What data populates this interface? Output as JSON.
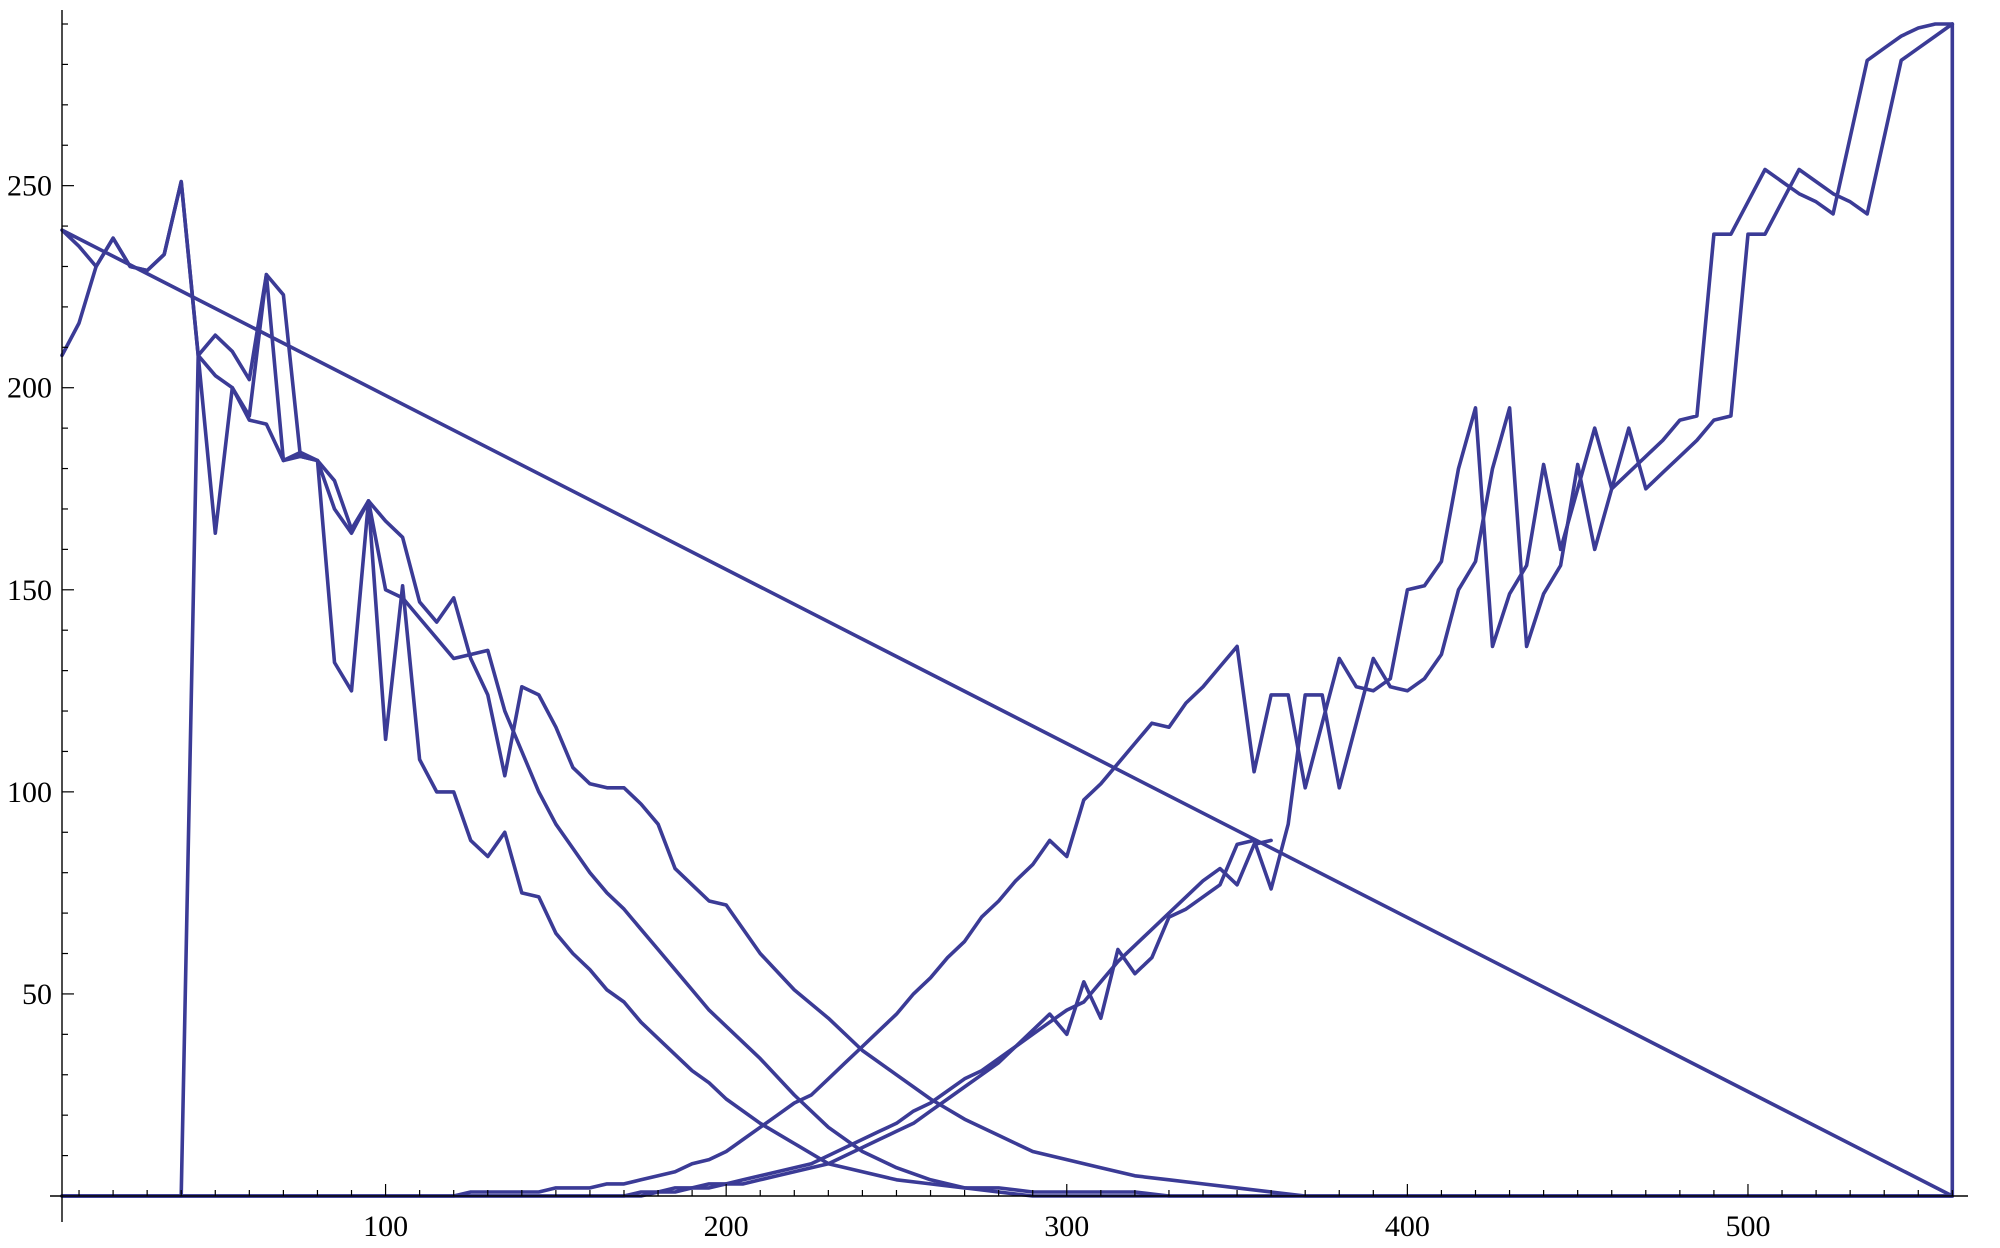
{
  "chart_data": {
    "type": "line",
    "title": "",
    "xlabel": "",
    "ylabel": "",
    "xlim": [
      0,
      565
    ],
    "ylim": [
      0,
      290
    ],
    "grid": false,
    "line_color": "#3b3b96",
    "x_ticks": [
      100,
      200,
      300,
      400,
      500
    ],
    "y_ticks": [
      50,
      100,
      150,
      200,
      250
    ],
    "x_minor_step": 10,
    "y_minor_step": 10,
    "series": [
      {
        "x": [
          5,
          10,
          15,
          20,
          25,
          30,
          35,
          40,
          45,
          50,
          55,
          60,
          65,
          70,
          75,
          80,
          85,
          90,
          95,
          100,
          105,
          110,
          115,
          120,
          125,
          130,
          135,
          140,
          145,
          150,
          155,
          160,
          165,
          170,
          175,
          180,
          185,
          190,
          195,
          200,
          210,
          220,
          230,
          240,
          250,
          260,
          270,
          280,
          290,
          300,
          310,
          320,
          330,
          340,
          350,
          360,
          370,
          380,
          390,
          400,
          410,
          420,
          430,
          440,
          450,
          460,
          470,
          480,
          490,
          500,
          510,
          520,
          530,
          540,
          550,
          560,
          560
        ],
        "y": [
          208,
          216,
          230,
          237,
          230,
          229,
          233,
          251,
          208,
          213,
          209,
          202,
          228,
          223,
          183,
          182,
          177,
          165,
          172,
          167,
          163,
          147,
          142,
          148,
          133,
          124,
          104,
          126,
          124,
          116,
          106,
          102,
          101,
          101,
          97,
          92,
          81,
          77,
          73,
          72,
          60,
          51,
          44,
          36,
          30,
          24,
          19,
          15,
          11,
          9,
          7,
          5,
          4,
          3,
          2,
          1,
          0,
          0,
          0,
          0,
          0,
          0,
          0,
          0,
          0,
          0,
          0,
          0,
          0,
          0,
          0,
          0,
          0,
          0,
          0,
          0,
          290
        ]
      },
      {
        "x": [
          5,
          10,
          15,
          20,
          25,
          30,
          35,
          40,
          45,
          50,
          55,
          60,
          65,
          70,
          75,
          80,
          85,
          90,
          95,
          100,
          105,
          110,
          115,
          120,
          125,
          130,
          135,
          140,
          145,
          150,
          155,
          160,
          165,
          170,
          175,
          180,
          185,
          190,
          195,
          200,
          210,
          220,
          230,
          240,
          250,
          260,
          270,
          280,
          290,
          300,
          310,
          320,
          330,
          340,
          350,
          360,
          370,
          380,
          390,
          400,
          410,
          420,
          430,
          440,
          450,
          460,
          470,
          480,
          490,
          500,
          510,
          520,
          530,
          540,
          550,
          560,
          5
        ],
        "y": [
          239,
          235,
          230,
          237,
          230,
          229,
          233,
          251,
          208,
          203,
          200,
          192,
          191,
          182,
          183,
          182,
          132,
          125,
          172,
          113,
          151,
          108,
          100,
          100,
          88,
          84,
          90,
          75,
          74,
          65,
          60,
          56,
          51,
          48,
          43,
          39,
          35,
          31,
          28,
          24,
          18,
          13,
          8,
          6,
          4,
          3,
          2,
          2,
          1,
          1,
          1,
          1,
          0,
          0,
          0,
          0,
          0,
          0,
          0,
          0,
          0,
          0,
          0,
          0,
          0,
          0,
          0,
          0,
          0,
          0,
          0,
          0,
          0,
          0,
          0,
          0,
          239
        ]
      },
      {
        "x": [
          5,
          10,
          15,
          20,
          25,
          30,
          35,
          40,
          45,
          50,
          55,
          60,
          65,
          70,
          75,
          80,
          85,
          90,
          95,
          100,
          105,
          110,
          115,
          120,
          125,
          130,
          135,
          140,
          145,
          150,
          155,
          160,
          165,
          170,
          175,
          180,
          185,
          190,
          195,
          200,
          210,
          220,
          230,
          240,
          250,
          260,
          270,
          280,
          290,
          300,
          310,
          320,
          330,
          340,
          350,
          360,
          370,
          380,
          390,
          400,
          410,
          420,
          430,
          440,
          450,
          460,
          470,
          480,
          490,
          500,
          510,
          520,
          530,
          540,
          550,
          560
        ],
        "y": [
          0,
          0,
          0,
          0,
          0,
          0,
          0,
          0,
          208,
          164,
          200,
          193,
          228,
          182,
          184,
          182,
          170,
          164,
          172,
          150,
          148,
          143,
          138,
          133,
          134,
          135,
          120,
          110,
          100,
          92,
          86,
          80,
          75,
          71,
          66,
          61,
          56,
          51,
          46,
          42,
          34,
          25,
          17,
          11,
          7,
          4,
          2,
          1,
          0,
          0,
          0,
          0,
          0,
          0,
          0,
          0,
          0,
          0,
          0,
          0,
          0,
          0,
          0,
          0,
          0,
          0,
          0,
          0,
          0,
          0,
          0,
          0,
          0,
          0,
          0,
          0
        ]
      },
      {
        "x": [
          5,
          10,
          15,
          20,
          25,
          30,
          35,
          40,
          45,
          50,
          55,
          60,
          65,
          70,
          75,
          80,
          85,
          90,
          95,
          100,
          105,
          110,
          115,
          120,
          125,
          130,
          135,
          140,
          145,
          150,
          155,
          160,
          165,
          170,
          175,
          180,
          185,
          190,
          195,
          200,
          205,
          210,
          215,
          220,
          225,
          230,
          235,
          240,
          245,
          250,
          255,
          260,
          265,
          270,
          275,
          280,
          285,
          290,
          295,
          300,
          305,
          310,
          315,
          320,
          325,
          330,
          335,
          340,
          345,
          350,
          355,
          360,
          365,
          370,
          375,
          380,
          385,
          390,
          395,
          400,
          405,
          410,
          415,
          420,
          425,
          430,
          435,
          440,
          445,
          450,
          455,
          460,
          465,
          470,
          475,
          480,
          485,
          490,
          495,
          500,
          505,
          510,
          515,
          520,
          525,
          530,
          535,
          540,
          545,
          550,
          555,
          560
        ],
        "y": [
          0,
          0,
          0,
          0,
          0,
          0,
          0,
          0,
          0,
          0,
          0,
          0,
          0,
          0,
          0,
          0,
          0,
          0,
          0,
          0,
          0,
          0,
          0,
          0,
          1,
          1,
          1,
          1,
          1,
          2,
          2,
          2,
          3,
          3,
          4,
          5,
          6,
          8,
          9,
          11,
          14,
          17,
          20,
          23,
          25,
          29,
          33,
          37,
          41,
          45,
          50,
          54,
          59,
          63,
          69,
          73,
          78,
          82,
          88,
          84,
          98,
          102,
          107,
          112,
          117,
          116,
          122,
          126,
          131,
          136,
          105,
          124,
          124,
          101,
          117,
          133,
          126,
          125,
          128,
          150,
          151,
          157,
          180,
          195,
          136,
          149,
          156,
          181,
          160,
          175,
          190,
          175,
          179,
          183,
          187,
          192,
          193,
          238,
          238,
          246,
          254,
          251,
          248,
          246,
          243,
          262,
          281,
          284,
          287,
          289,
          290,
          290
        ]
      },
      {
        "x": [
          5,
          10,
          15,
          20,
          25,
          30,
          35,
          40,
          45,
          50,
          55,
          60,
          65,
          70,
          75,
          80,
          85,
          90,
          95,
          100,
          105,
          110,
          115,
          120,
          125,
          130,
          135,
          140,
          145,
          150,
          155,
          160,
          165,
          170,
          175,
          180,
          185,
          190,
          195,
          200,
          205,
          210,
          215,
          220,
          225,
          230,
          235,
          240,
          245,
          250,
          255,
          260,
          265,
          270,
          275,
          280,
          285,
          290,
          295,
          300,
          305,
          310,
          315,
          320,
          325,
          330,
          335,
          340,
          345,
          350,
          355,
          360,
          365,
          370,
          375,
          380,
          385,
          390,
          395,
          400,
          405,
          410,
          415,
          420,
          425,
          430,
          435,
          440,
          445,
          450,
          455,
          460,
          465,
          470,
          475,
          480,
          485,
          490,
          495,
          500,
          505,
          510,
          515,
          520,
          525,
          530,
          535,
          540,
          545,
          550,
          555,
          560
        ],
        "y": [
          0,
          0,
          0,
          0,
          0,
          0,
          0,
          0,
          0,
          0,
          0,
          0,
          0,
          0,
          0,
          0,
          0,
          0,
          0,
          0,
          0,
          0,
          0,
          0,
          0,
          0,
          0,
          0,
          0,
          0,
          0,
          0,
          0,
          0,
          1,
          1,
          1,
          2,
          2,
          3,
          3,
          4,
          5,
          6,
          7,
          8,
          10,
          12,
          14,
          16,
          18,
          21,
          24,
          27,
          30,
          33,
          37,
          41,
          45,
          40,
          53,
          44,
          61,
          55,
          59,
          69,
          71,
          74,
          77,
          87,
          88,
          76,
          92,
          124,
          124,
          101,
          117,
          133,
          126,
          125,
          128,
          134,
          150,
          157,
          180,
          195,
          136,
          149,
          156,
          181,
          160,
          175,
          190,
          175,
          179,
          183,
          187,
          192,
          193,
          238,
          238,
          246,
          254,
          251,
          248,
          246,
          243,
          262,
          281,
          284,
          287,
          290
        ]
      },
      {
        "x": [
          5,
          10,
          15,
          20,
          25,
          30,
          35,
          40,
          45,
          50,
          55,
          60,
          65,
          70,
          75,
          80,
          85,
          90,
          95,
          100,
          105,
          110,
          115,
          120,
          125,
          130,
          135,
          140,
          145,
          150,
          155,
          160,
          165,
          170,
          175,
          180,
          185,
          190,
          195,
          200,
          205,
          210,
          215,
          220,
          225,
          230,
          235,
          240,
          245,
          250,
          255,
          260,
          265,
          270,
          275,
          280,
          285,
          290,
          295,
          300,
          305,
          310,
          315,
          320,
          325,
          330,
          335,
          340,
          345,
          350,
          355,
          360
        ],
        "y": [
          0,
          0,
          0,
          0,
          0,
          0,
          0,
          0,
          0,
          0,
          0,
          0,
          0,
          0,
          0,
          0,
          0,
          0,
          0,
          0,
          0,
          0,
          0,
          0,
          0,
          0,
          0,
          0,
          0,
          0,
          0,
          0,
          0,
          0,
          0,
          1,
          2,
          2,
          3,
          3,
          4,
          5,
          6,
          7,
          8,
          10,
          12,
          14,
          16,
          18,
          21,
          23,
          26,
          29,
          31,
          34,
          37,
          40,
          43,
          46,
          48,
          53,
          58,
          62,
          66,
          70,
          74,
          78,
          81,
          77,
          87,
          88
        ]
      }
    ]
  }
}
